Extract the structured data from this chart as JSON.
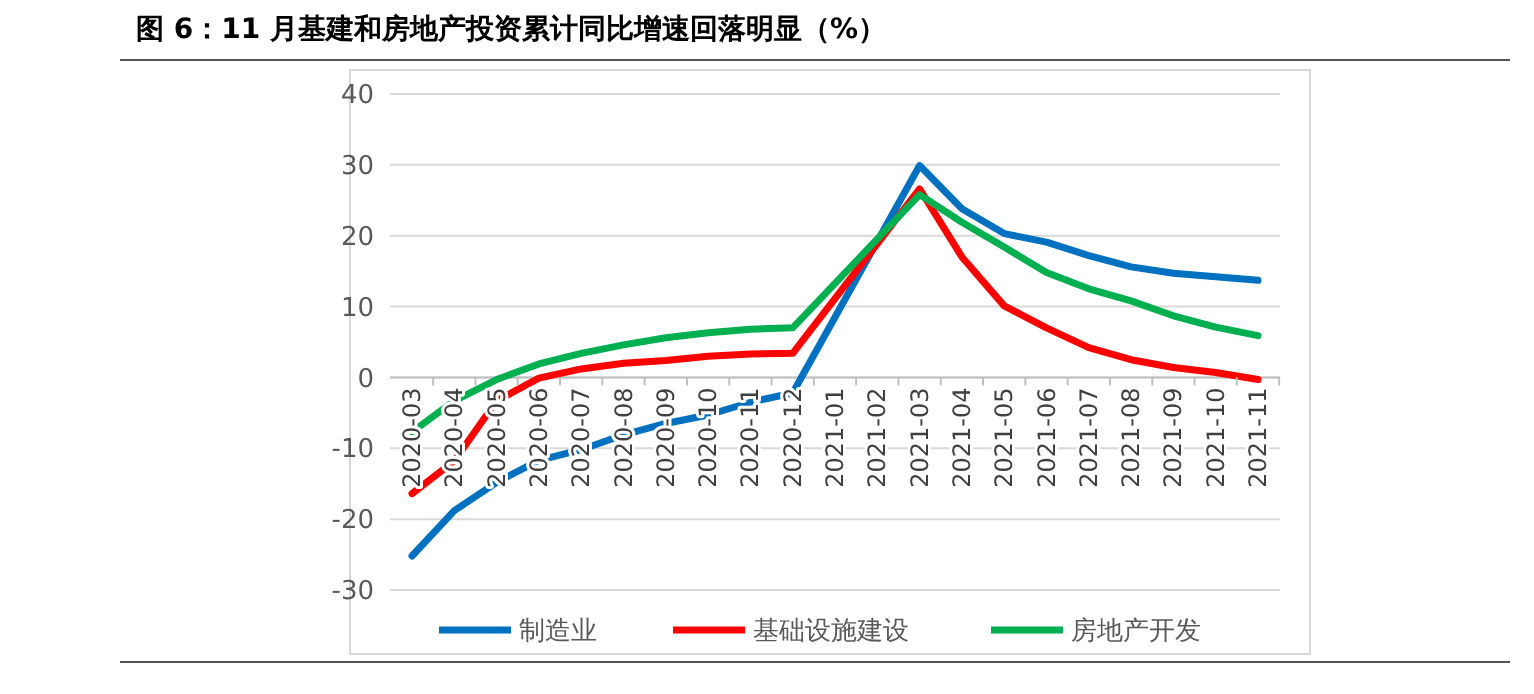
{
  "chart_data": {
    "type": "line",
    "title": "图 6：11 月基建和房地产投资累计同比增速回落明显（%）",
    "categories": [
      "2020-03",
      "2020-04",
      "2020-05",
      "2020-06",
      "2020-07",
      "2020-08",
      "2020-09",
      "2020-10",
      "2020-11",
      "2020-12",
      "2021-01",
      "2021-02",
      "2021-03",
      "2021-04",
      "2021-05",
      "2021-06",
      "2021-07",
      "2021-08",
      "2021-09",
      "2021-10",
      "2021-11"
    ],
    "series": [
      {
        "name": "制造业",
        "color": "#0070c0",
        "values": [
          -25.2,
          -18.8,
          -14.8,
          -11.7,
          -10.2,
          -8.1,
          -6.5,
          -5.3,
          -3.5,
          -2.2,
          null,
          null,
          29.9,
          23.8,
          20.3,
          19.1,
          17.2,
          15.6,
          14.7,
          14.2,
          13.7
        ]
      },
      {
        "name": "基础设施建设",
        "color": "#ff0000",
        "values": [
          -16.4,
          -11.8,
          -3.3,
          -0.1,
          1.2,
          2.0,
          2.4,
          3.0,
          3.3,
          3.4,
          null,
          null,
          26.6,
          17.0,
          10.1,
          7.0,
          4.2,
          2.5,
          1.4,
          0.7,
          -0.3
        ]
      },
      {
        "name": "房地产开发",
        "color": "#00b050",
        "values": [
          -7.7,
          -3.3,
          -0.3,
          1.9,
          3.4,
          4.6,
          5.6,
          6.3,
          6.8,
          7.0,
          null,
          null,
          25.8,
          21.9,
          18.4,
          14.8,
          12.5,
          10.8,
          8.7,
          7.1,
          5.9
        ]
      }
    ],
    "ylim": [
      -30,
      40
    ],
    "yticks": [
      -30,
      -20,
      -10,
      0,
      10,
      20,
      30,
      40
    ],
    "grid": "y",
    "legend": "bottom",
    "marker": "none",
    "line_style": "solid"
  }
}
